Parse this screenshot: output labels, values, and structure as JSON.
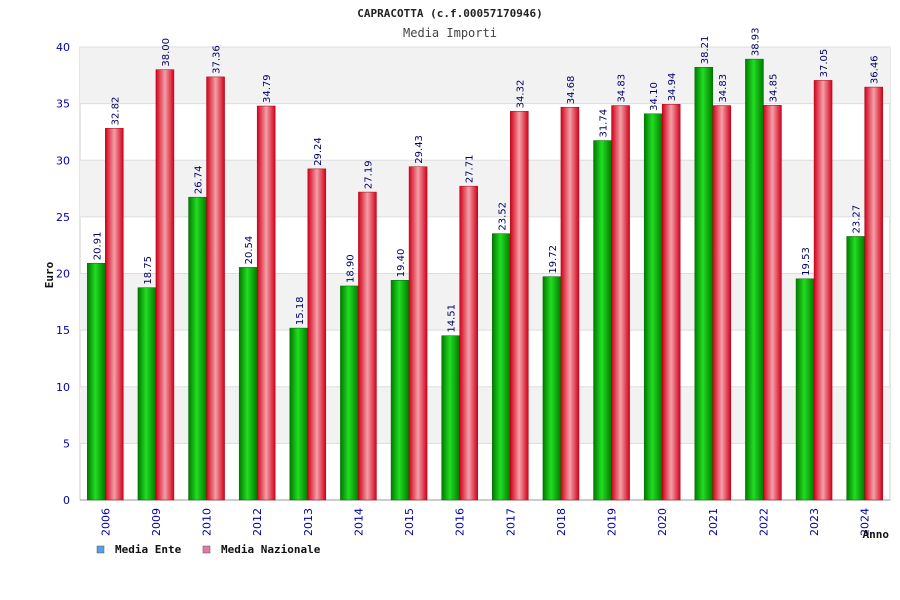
{
  "chart_data": {
    "type": "bar",
    "title": "CAPRACOTTA (c.f.00057170946)",
    "subtitle": "Media Importi",
    "ylabel": "Euro",
    "xlabel": "Anno",
    "ylim": [
      0,
      40
    ],
    "yticks": [
      "0",
      "5",
      "10",
      "15",
      "20",
      "25",
      "30",
      "35",
      "40"
    ],
    "categories": [
      "2006",
      "2009",
      "2010",
      "2012",
      "2013",
      "2014",
      "2015",
      "2016",
      "2017",
      "2018",
      "2019",
      "2020",
      "2021",
      "2022",
      "2023",
      "2024"
    ],
    "series": [
      {
        "name": "Media Ente",
        "color": "#00aa00",
        "legend_color": "#5a9ee8",
        "values": [
          20.91,
          18.75,
          26.74,
          20.54,
          15.18,
          18.9,
          19.4,
          14.51,
          23.52,
          19.72,
          31.74,
          34.1,
          38.21,
          38.93,
          19.53,
          23.27
        ],
        "labels": [
          "20.91",
          "18.75",
          "26.74",
          "20.54",
          "15.18",
          "18.90",
          "19.40",
          "14.51",
          "23.52",
          "19.72",
          "31.74",
          "34.10",
          "38.21",
          "38.93",
          "19.53",
          "23.27"
        ]
      },
      {
        "name": "Media Nazionale",
        "color": "#ee1122",
        "legend_color": "#e07aa8",
        "values": [
          32.82,
          38.0,
          37.36,
          34.79,
          29.24,
          27.19,
          29.43,
          27.71,
          34.32,
          34.68,
          34.83,
          34.94,
          34.83,
          34.85,
          37.05,
          36.46
        ],
        "labels": [
          "32.82",
          "38.00",
          "37.36",
          "34.79",
          "29.24",
          "27.19",
          "29.43",
          "27.71",
          "34.32",
          "34.68",
          "34.83",
          "34.94",
          "34.83",
          "34.85",
          "37.05",
          "36.46"
        ]
      }
    ],
    "grid": true,
    "legend": "bottom-left"
  }
}
